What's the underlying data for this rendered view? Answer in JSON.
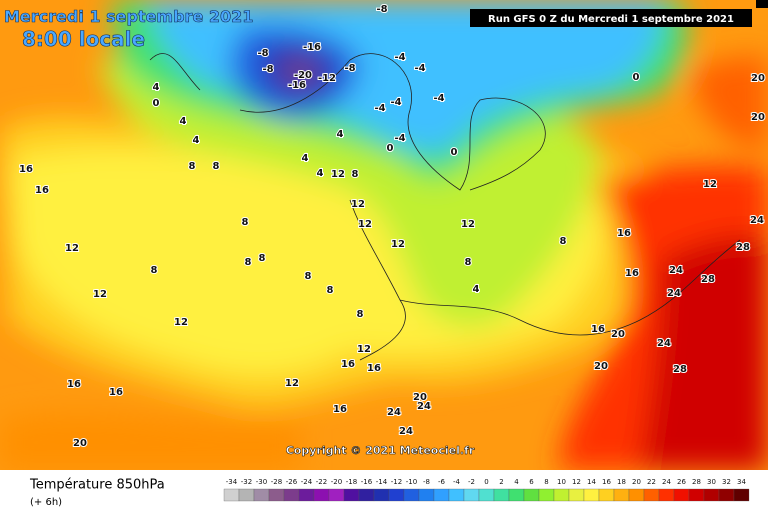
{
  "header": {
    "title": "Mercredi 1 septembre 2021",
    "time": "8:00 locale",
    "run": "Run GFS 0 Z du Mercredi 1 septembre 2021"
  },
  "copyright": "Copyright © 2021 Meteociel.fr",
  "legend": {
    "title": "Température 850hPa",
    "step": "(+ 6h)",
    "scale": [
      -34,
      -32,
      -30,
      -28,
      -26,
      -24,
      -22,
      -20,
      -18,
      -16,
      -14,
      -12,
      -10,
      -8,
      -6,
      -4,
      -2,
      0,
      2,
      4,
      6,
      8,
      10,
      12,
      14,
      16,
      18,
      20,
      22,
      24,
      26,
      28,
      30,
      32,
      34
    ],
    "colors": [
      "#d0d0d0",
      "#b4b4b4",
      "#a08ca6",
      "#8c5c8c",
      "#7c3c8c",
      "#6c1c9c",
      "#8c10b0",
      "#a020c0",
      "#5010a0",
      "#3020a0",
      "#2030b0",
      "#2040d0",
      "#2060e0",
      "#2080f0",
      "#30a0ff",
      "#40c0ff",
      "#60d8f0",
      "#50e0d0",
      "#40e0a0",
      "#40e070",
      "#60e040",
      "#90f030",
      "#c0f030",
      "#e8f040",
      "#fff040",
      "#ffd020",
      "#ffb010",
      "#ff9000",
      "#ff6000",
      "#ff3000",
      "#f01000",
      "#d00000",
      "#b00000",
      "#900000",
      "#600000"
    ]
  },
  "contour_labels": [
    -8,
    -16,
    -8,
    -8,
    -20,
    -16,
    -12,
    -8,
    -4,
    -4,
    -4,
    -4,
    -4,
    -4,
    0,
    0,
    0,
    4,
    0,
    4,
    4,
    4,
    4,
    4,
    8,
    8,
    12,
    8,
    12,
    12,
    8,
    8,
    8,
    8,
    12,
    16,
    16,
    12,
    12,
    8,
    8,
    8,
    12,
    12,
    8,
    4,
    8,
    16,
    16,
    12,
    16,
    20,
    24,
    24,
    28,
    28,
    24,
    20,
    20,
    24,
    28,
    20,
    12,
    12,
    16,
    16,
    16,
    16,
    20,
    20,
    24,
    24,
    24,
    16
  ]
}
